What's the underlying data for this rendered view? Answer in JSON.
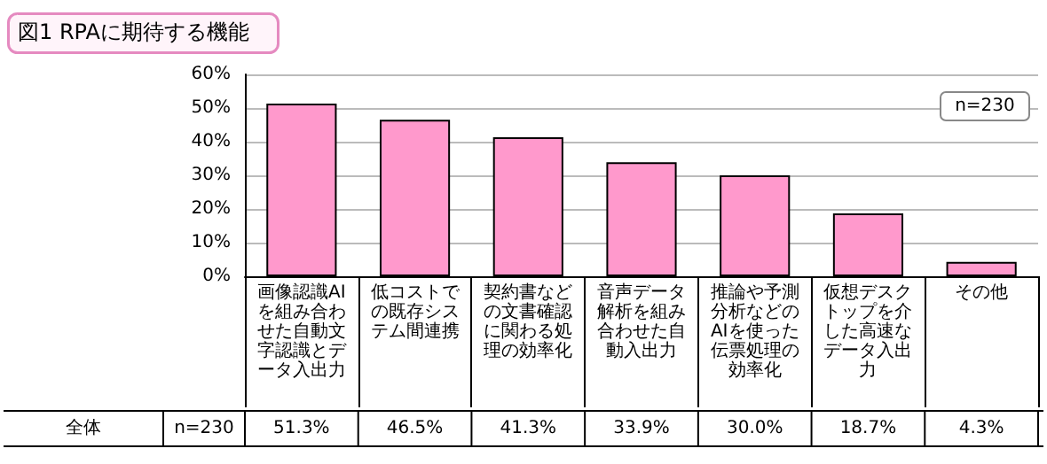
{
  "chart_data": {
    "type": "bar",
    "title": "図1 RPAに期待する機能",
    "categories": [
      "画像認識AIを組み合わせた自動文字認識とデータ入出力",
      "低コストでの既存システム間連携",
      "契約書などの文書確認に関わる処理の効率化",
      "音声データ解析を組み合わせた自動入出力",
      "推論や予測分析などのAIを使った伝票処理の効率化",
      "仮想デスクトップを介した高速なデータ入出力",
      "その他"
    ],
    "values": [
      51.3,
      46.5,
      41.3,
      33.9,
      30.0,
      18.7,
      4.3
    ],
    "value_labels": [
      "51.3%",
      "46.5%",
      "41.3%",
      "33.9%",
      "30.0%",
      "18.7%",
      "4.3%"
    ],
    "color": "#ff99cc",
    "ylim": [
      0,
      60
    ],
    "yticks": [
      {
        "value": 0,
        "label": "0%"
      },
      {
        "value": 10,
        "label": "10%"
      },
      {
        "value": 20,
        "label": "20%"
      },
      {
        "value": 30,
        "label": "30%"
      },
      {
        "value": 40,
        "label": "40%"
      },
      {
        "value": 50,
        "label": "50%"
      },
      {
        "value": 60,
        "label": "60%"
      }
    ],
    "grid": "y",
    "annotations": [
      "n=230",
      "全体",
      "n=230"
    ]
  }
}
